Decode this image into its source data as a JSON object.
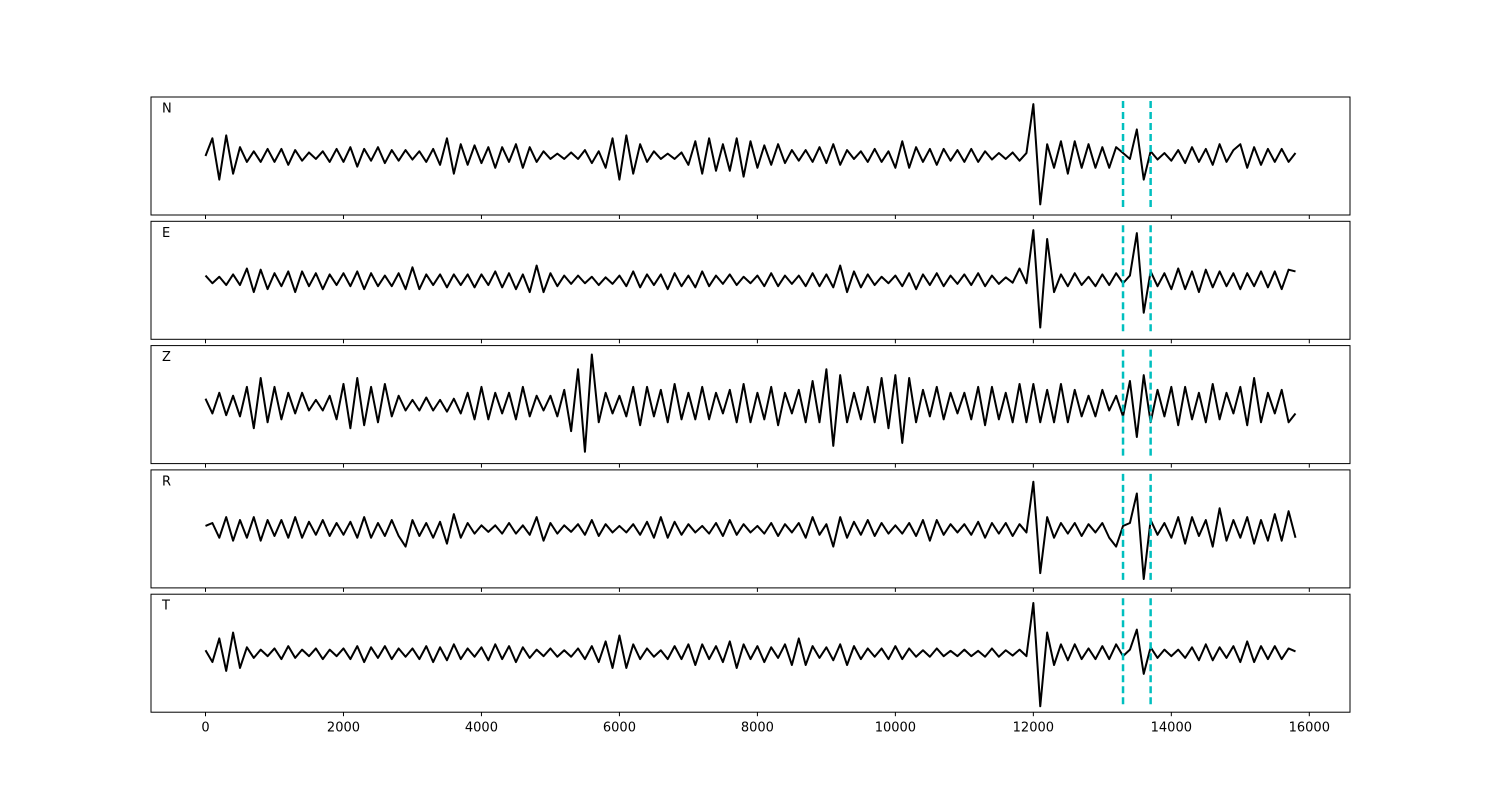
{
  "chart_data": {
    "type": "line",
    "x": [
      0,
      100,
      200,
      300,
      400,
      500,
      600,
      700,
      800,
      900,
      1000,
      1100,
      1200,
      1300,
      1400,
      1500,
      1600,
      1700,
      1800,
      1900,
      2000,
      2100,
      2200,
      2300,
      2400,
      2500,
      2600,
      2700,
      2800,
      2900,
      3000,
      3100,
      3200,
      3300,
      3400,
      3500,
      3600,
      3700,
      3800,
      3900,
      4000,
      4100,
      4200,
      4300,
      4400,
      4500,
      4600,
      4700,
      4800,
      4900,
      5000,
      5100,
      5200,
      5300,
      5400,
      5500,
      5600,
      5700,
      5800,
      5900,
      6000,
      6100,
      6200,
      6300,
      6400,
      6500,
      6600,
      6700,
      6800,
      6900,
      7000,
      7100,
      7200,
      7300,
      7400,
      7500,
      7600,
      7700,
      7800,
      7900,
      8000,
      8100,
      8200,
      8300,
      8400,
      8500,
      8600,
      8700,
      8800,
      8900,
      9000,
      9100,
      9200,
      9300,
      9400,
      9500,
      9600,
      9700,
      9800,
      9900,
      10000,
      10100,
      10200,
      10300,
      10400,
      10500,
      10600,
      10700,
      10800,
      10900,
      11000,
      11100,
      11200,
      11300,
      11400,
      11500,
      11600,
      11700,
      11800,
      11900,
      12000,
      12100,
      12200,
      12300,
      12400,
      12500,
      12600,
      12700,
      12800,
      12900,
      13000,
      13100,
      13200,
      13300,
      13400,
      13500,
      13600,
      13700,
      13800,
      13900,
      14000,
      14100,
      14200,
      14300,
      14400,
      14500,
      14600,
      14700,
      14800,
      14900,
      15000,
      15100,
      15200,
      15300,
      15400,
      15500,
      15600,
      15700,
      15800
    ],
    "xlim": [
      -790,
      16590
    ],
    "xticks": [
      0,
      2000,
      4000,
      6000,
      8000,
      10000,
      12000,
      14000,
      16000
    ],
    "ylim": [
      -1,
      1
    ],
    "vlines": [
      13300,
      13700
    ],
    "vline_color": "#00bfbf",
    "series": [
      {
        "name": "N",
        "color": "#000000",
        "values": [
          0,
          0.3,
          -0.4,
          0.35,
          -0.3,
          0.15,
          -0.1,
          0.08,
          -0.1,
          0.12,
          -0.1,
          0.12,
          -0.15,
          0.1,
          -0.08,
          0.06,
          -0.05,
          0.08,
          -0.1,
          0.12,
          -0.1,
          0.15,
          -0.18,
          0.12,
          -0.08,
          0.15,
          -0.12,
          0.1,
          -0.08,
          0.1,
          -0.06,
          0.08,
          -0.1,
          0.12,
          -0.15,
          0.3,
          -0.3,
          0.2,
          -0.15,
          0.18,
          -0.12,
          0.15,
          -0.2,
          0.15,
          -0.1,
          0.2,
          -0.2,
          0.15,
          -0.1,
          0.08,
          -0.05,
          0.04,
          -0.05,
          0.06,
          -0.05,
          0.1,
          -0.12,
          0.08,
          -0.2,
          0.3,
          -0.4,
          0.35,
          -0.3,
          0.2,
          -0.1,
          0.08,
          -0.05,
          0.04,
          -0.05,
          0.06,
          -0.15,
          0.25,
          -0.3,
          0.3,
          -0.25,
          0.2,
          -0.25,
          0.3,
          -0.35,
          0.25,
          -0.2,
          0.18,
          -0.15,
          0.2,
          -0.12,
          0.1,
          -0.08,
          0.1,
          -0.1,
          0.15,
          -0.12,
          0.2,
          -0.15,
          0.1,
          -0.05,
          0.08,
          -0.1,
          0.12,
          -0.1,
          0.08,
          -0.2,
          0.25,
          -0.2,
          0.15,
          -0.1,
          0.12,
          -0.15,
          0.12,
          -0.08,
          0.1,
          -0.1,
          0.12,
          -0.1,
          0.08,
          -0.06,
          0.05,
          -0.05,
          0.06,
          -0.08,
          0.05,
          0.88,
          -0.82,
          0.2,
          -0.2,
          0.25,
          -0.3,
          0.25,
          -0.2,
          0.2,
          -0.2,
          0.15,
          -0.2,
          0.15,
          0.05,
          -0.05,
          0.45,
          -0.4,
          0.08,
          -0.06,
          0.05,
          -0.08,
          0.1,
          -0.12,
          0.15,
          -0.1,
          0.12,
          -0.15,
          0.2,
          -0.1,
          0.1,
          0.2,
          -0.2,
          0.15,
          -0.15,
          0.12,
          -0.1,
          0.12,
          -0.1,
          0.05
        ]
      },
      {
        "name": "E",
        "color": "#000000",
        "values": [
          0.08,
          -0.05,
          0.06,
          -0.08,
          0.1,
          -0.08,
          0.2,
          -0.2,
          0.18,
          -0.15,
          0.12,
          -0.1,
          0.15,
          -0.2,
          0.15,
          -0.1,
          0.12,
          -0.15,
          0.1,
          -0.08,
          0.12,
          -0.1,
          0.15,
          -0.15,
          0.12,
          -0.1,
          0.08,
          -0.1,
          0.12,
          -0.15,
          0.22,
          -0.15,
          0.1,
          -0.08,
          0.1,
          -0.12,
          0.1,
          -0.08,
          0.1,
          -0.12,
          0.1,
          -0.08,
          0.15,
          -0.12,
          0.12,
          -0.15,
          0.1,
          -0.2,
          0.25,
          -0.2,
          0.12,
          -0.1,
          0.08,
          -0.06,
          0.08,
          -0.05,
          0.06,
          -0.08,
          0.05,
          -0.06,
          0.08,
          -0.1,
          0.15,
          -0.12,
          0.1,
          -0.08,
          0.1,
          -0.15,
          0.12,
          -0.1,
          0.08,
          -0.12,
          0.15,
          -0.1,
          0.08,
          -0.06,
          0.1,
          -0.08,
          0.06,
          -0.05,
          0.08,
          -0.1,
          0.12,
          -0.1,
          0.08,
          -0.06,
          0.08,
          -0.1,
          0.12,
          -0.1,
          0.1,
          -0.12,
          0.25,
          -0.2,
          0.15,
          -0.12,
          0.1,
          -0.08,
          0.06,
          -0.05,
          0.08,
          -0.1,
          0.12,
          -0.15,
          0.1,
          -0.08,
          0.12,
          -0.1,
          0.08,
          -0.06,
          0.1,
          -0.08,
          0.12,
          -0.1,
          0.08,
          -0.06,
          0.05,
          -0.04,
          0.2,
          -0.05,
          0.85,
          -0.8,
          0.7,
          -0.2,
          0.1,
          -0.1,
          0.12,
          -0.08,
          0.06,
          -0.1,
          0.1,
          -0.08,
          0.12,
          -0.05,
          0.08,
          0.8,
          -0.55,
          0.15,
          -0.1,
          0.12,
          -0.15,
          0.2,
          -0.15,
          0.15,
          -0.2,
          0.18,
          -0.12,
          0.15,
          -0.1,
          0.12,
          -0.15,
          0.12,
          -0.1,
          0.15,
          -0.12,
          0.15,
          -0.15,
          0.18,
          0.15
        ]
      },
      {
        "name": "Z",
        "color": "#000000",
        "values": [
          0.1,
          -0.15,
          0.2,
          -0.18,
          0.15,
          -0.2,
          0.3,
          -0.4,
          0.45,
          -0.3,
          0.3,
          -0.25,
          0.2,
          -0.15,
          0.2,
          -0.1,
          0.08,
          -0.1,
          0.15,
          -0.25,
          0.35,
          -0.4,
          0.45,
          -0.35,
          0.3,
          -0.3,
          0.35,
          -0.2,
          0.15,
          -0.1,
          0.08,
          -0.1,
          0.12,
          -0.1,
          0.08,
          -0.12,
          0.1,
          -0.15,
          0.2,
          -0.25,
          0.3,
          -0.25,
          0.2,
          -0.15,
          0.2,
          -0.25,
          0.3,
          -0.2,
          0.15,
          -0.1,
          0.15,
          -0.2,
          0.25,
          -0.45,
          0.6,
          -0.8,
          0.85,
          -0.3,
          0.2,
          -0.15,
          0.15,
          -0.2,
          0.3,
          -0.35,
          0.3,
          -0.2,
          0.25,
          -0.3,
          0.35,
          -0.25,
          0.2,
          -0.25,
          0.3,
          -0.25,
          0.2,
          -0.15,
          0.25,
          -0.3,
          0.35,
          -0.3,
          0.2,
          -0.25,
          0.3,
          -0.35,
          0.2,
          -0.15,
          0.25,
          -0.3,
          0.4,
          -0.3,
          0.6,
          -0.7,
          0.5,
          -0.3,
          0.2,
          -0.25,
          0.3,
          -0.3,
          0.45,
          -0.4,
          0.5,
          -0.65,
          0.45,
          -0.3,
          0.25,
          -0.2,
          0.3,
          -0.25,
          0.2,
          -0.15,
          0.2,
          -0.25,
          0.3,
          -0.35,
          0.3,
          -0.25,
          0.2,
          -0.3,
          0.35,
          -0.3,
          0.35,
          -0.3,
          0.25,
          -0.3,
          0.35,
          -0.3,
          0.25,
          -0.2,
          0.15,
          -0.2,
          0.25,
          -0.1,
          0.15,
          -0.2,
          0.4,
          -0.55,
          0.5,
          -0.3,
          0.25,
          -0.2,
          0.3,
          -0.35,
          0.3,
          -0.25,
          0.2,
          -0.3,
          0.35,
          -0.25,
          0.2,
          -0.15,
          0.3,
          -0.35,
          0.45,
          -0.3,
          0.2,
          -0.15,
          0.25,
          -0.3,
          -0.15
        ]
      },
      {
        "name": "R",
        "color": "#000000",
        "values": [
          0.05,
          0.1,
          -0.15,
          0.2,
          -0.2,
          0.15,
          -0.15,
          0.2,
          -0.2,
          0.15,
          -0.12,
          0.15,
          -0.15,
          0.2,
          -0.15,
          0.12,
          -0.1,
          0.15,
          -0.12,
          0.1,
          -0.1,
          0.12,
          -0.15,
          0.2,
          -0.15,
          0.1,
          -0.12,
          0.15,
          -0.12,
          -0.3,
          0.15,
          -0.12,
          0.1,
          -0.15,
          0.12,
          -0.25,
          0.25,
          -0.15,
          0.1,
          -0.08,
          0.06,
          -0.05,
          0.06,
          -0.08,
          0.1,
          -0.08,
          0.06,
          -0.1,
          0.2,
          -0.2,
          0.1,
          -0.08,
          0.06,
          -0.05,
          0.08,
          -0.1,
          0.15,
          -0.12,
          0.08,
          -0.06,
          0.05,
          -0.06,
          0.08,
          -0.1,
          0.12,
          -0.15,
          0.2,
          -0.15,
          0.12,
          -0.1,
          0.08,
          -0.06,
          0.05,
          -0.08,
          0.1,
          -0.12,
          0.15,
          -0.1,
          0.08,
          -0.06,
          0.05,
          -0.08,
          0.1,
          -0.12,
          0.08,
          -0.06,
          0.1,
          -0.15,
          0.2,
          -0.1,
          0.08,
          -0.3,
          0.2,
          -0.15,
          0.12,
          -0.1,
          0.15,
          -0.12,
          0.1,
          -0.08,
          0.06,
          -0.08,
          0.1,
          -0.12,
          0.15,
          -0.2,
          0.15,
          -0.1,
          0.08,
          -0.06,
          0.08,
          -0.1,
          0.12,
          -0.15,
          0.1,
          -0.08,
          0.1,
          -0.12,
          0.08,
          -0.06,
          0.8,
          -0.75,
          0.2,
          -0.15,
          0.1,
          -0.08,
          0.1,
          -0.12,
          0.08,
          -0.06,
          0.1,
          -0.15,
          -0.3,
          0.05,
          0.1,
          0.6,
          -0.85,
          0.15,
          -0.1,
          0.1,
          -0.15,
          0.2,
          -0.25,
          0.2,
          -0.12,
          0.15,
          -0.3,
          0.35,
          -0.2,
          0.15,
          -0.15,
          0.2,
          -0.25,
          0.15,
          -0.2,
          0.25,
          -0.2,
          0.3,
          -0.15
        ]
      },
      {
        "name": "T",
        "color": "#000000",
        "values": [
          0.05,
          -0.15,
          0.25,
          -0.3,
          0.35,
          -0.25,
          0.1,
          -0.08,
          0.06,
          -0.05,
          0.08,
          -0.1,
          0.12,
          -0.08,
          0.06,
          -0.05,
          0.08,
          -0.1,
          0.06,
          -0.05,
          0.08,
          -0.1,
          0.12,
          -0.15,
          0.1,
          -0.08,
          0.12,
          -0.1,
          0.08,
          -0.06,
          0.08,
          -0.1,
          0.12,
          -0.15,
          0.1,
          -0.12,
          0.15,
          -0.1,
          0.08,
          -0.06,
          0.1,
          -0.12,
          0.15,
          -0.1,
          0.12,
          -0.15,
          0.1,
          -0.08,
          0.06,
          -0.05,
          0.08,
          -0.06,
          0.05,
          -0.06,
          0.08,
          -0.1,
          0.12,
          -0.15,
          0.2,
          -0.25,
          0.3,
          -0.25,
          0.15,
          -0.1,
          0.08,
          -0.06,
          0.05,
          -0.1,
          0.12,
          -0.1,
          0.15,
          -0.2,
          0.15,
          -0.1,
          0.12,
          -0.15,
          0.2,
          -0.25,
          0.15,
          -0.1,
          0.12,
          -0.15,
          0.1,
          -0.08,
          0.15,
          -0.2,
          0.25,
          -0.2,
          0.12,
          -0.08,
          0.1,
          -0.12,
          0.15,
          -0.2,
          0.12,
          -0.1,
          0.08,
          -0.06,
          0.08,
          -0.1,
          0.12,
          -0.1,
          0.08,
          -0.06,
          0.05,
          -0.06,
          0.08,
          -0.05,
          0.04,
          -0.05,
          0.06,
          -0.05,
          0.04,
          -0.06,
          0.08,
          -0.06,
          0.05,
          -0.04,
          0.06,
          -0.05,
          0.85,
          -0.9,
          0.35,
          -0.2,
          0.15,
          -0.12,
          0.15,
          -0.1,
          0.08,
          -0.1,
          0.12,
          -0.1,
          0.15,
          -0.05,
          0.06,
          0.4,
          -0.35,
          0.1,
          -0.08,
          0.06,
          -0.05,
          0.06,
          -0.08,
          0.1,
          -0.12,
          0.15,
          -0.12,
          0.1,
          -0.08,
          0.12,
          -0.15,
          0.2,
          -0.15,
          0.12,
          -0.1,
          0.12,
          -0.1,
          0.08,
          0.03
        ]
      }
    ]
  }
}
